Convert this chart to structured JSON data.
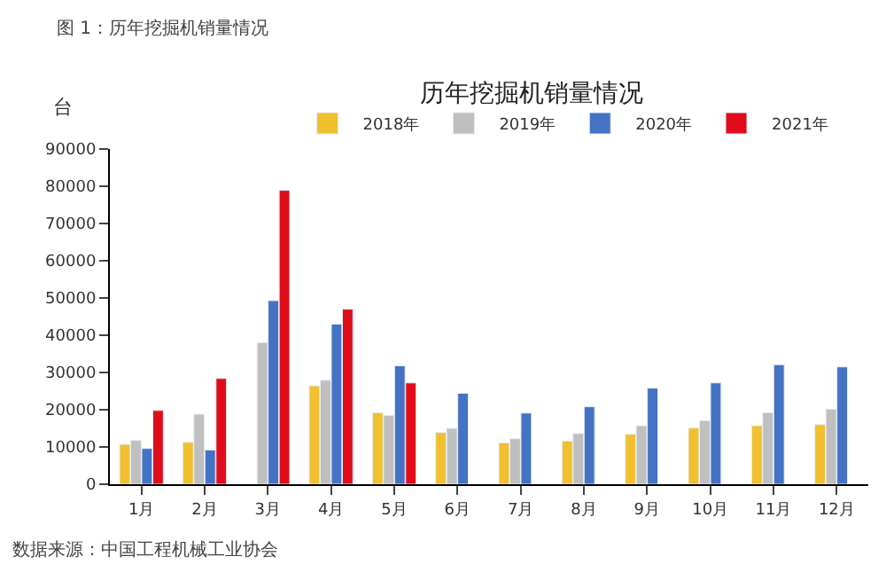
{
  "chart_data": {
    "type": "bar",
    "title": "历年挖掘机销量情况",
    "ylabel": "台",
    "categories": [
      "1月",
      "2月",
      "3月",
      "4月",
      "5月",
      "6月",
      "7月",
      "8月",
      "9月",
      "10月",
      "11月",
      "12月"
    ],
    "series": [
      {
        "name": "2018年",
        "color": "#f0c02e",
        "values": [
          10700,
          11300,
          null,
          26400,
          19200,
          13900,
          11100,
          11600,
          13400,
          15100,
          15700,
          16000
        ]
      },
      {
        "name": "2019年",
        "color": "#bfbfbf",
        "values": [
          11800,
          18800,
          38000,
          27900,
          18500,
          15000,
          12200,
          13600,
          15700,
          17100,
          19200,
          20200
        ]
      },
      {
        "name": "2020年",
        "color": "#4472c4",
        "values": [
          9600,
          9200,
          49300,
          43000,
          31800,
          24400,
          19100,
          20800,
          25800,
          27200,
          32100,
          31500
        ]
      },
      {
        "name": "2021年",
        "color": "#e00c1a",
        "values": [
          19800,
          28400,
          78900,
          47000,
          27200,
          null,
          null,
          null,
          null,
          null,
          null,
          null
        ]
      }
    ],
    "ylim": [
      0,
      90000
    ],
    "yticks": [
      0,
      10000,
      20000,
      30000,
      40000,
      50000,
      60000,
      70000,
      80000,
      90000
    ],
    "grid": false,
    "legend": "top",
    "annotations": [
      "图 1：历年挖掘机销量情况",
      "数据来源：中国工程机械工业协会"
    ]
  }
}
